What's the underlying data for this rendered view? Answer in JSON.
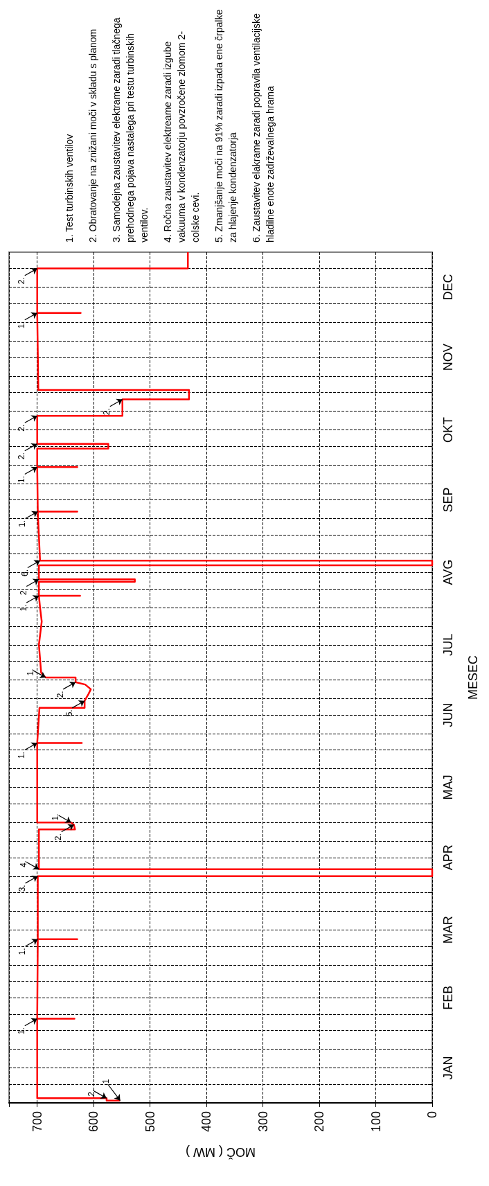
{
  "chart_data": {
    "type": "line",
    "orientation": "horizontal",
    "xlabel": "MOČ ( MW )",
    "ylabel": "MESEC",
    "x": [
      "--01-02",
      "--01-02",
      "--01-03",
      "--01-03",
      "--02-06",
      "--02-06",
      "--02-06",
      "--03-12",
      "--03-12",
      "--03-12",
      "--04-08",
      "--04-08",
      "--04-11",
      "--04-11",
      "--04-28",
      "--04-28",
      "--04-30",
      "--05-01",
      "--05-01",
      "--06-04",
      "--06-04",
      "--06-04",
      "--06-19",
      "--06-19",
      "--06-22",
      "--06-25",
      "--06-27",
      "--06-29",
      "--06-30",
      "--07-02",
      "--07-02",
      "--07-04",
      "--07-16",
      "--07-26",
      "--08-01",
      "--08-06",
      "--08-06",
      "--08-06",
      "--08-12",
      "--08-12",
      "--08-13",
      "--08-13",
      "--08-19",
      "--08-19",
      "--08-21",
      "--08-21",
      "--09-11",
      "--09-11",
      "--09-11",
      "--09-30",
      "--09-30",
      "--09-30",
      "--10-08",
      "--10-08",
      "--10-10",
      "--10-10",
      "--10-22",
      "--10-22",
      "--10-29",
      "--10-29",
      "--11-02",
      "--11-02",
      "--12-05",
      "--12-05",
      "--12-05",
      "--12-24",
      "--12-24",
      "--12-31"
    ],
    "series": [
      {
        "color": "#ff0000",
        "values": [
          553,
          577,
          577,
          700,
          700,
          634,
          700,
          699,
          629,
          699,
          699,
          0,
          0,
          697,
          697,
          633,
          635,
          640,
          700,
          700,
          621,
          700,
          696,
          616,
          616,
          609,
          605,
          615,
          632,
          632,
          685,
          693,
          697,
          692,
          695,
          697,
          624,
          697,
          697,
          527,
          527,
          697,
          697,
          0,
          0,
          695,
          699,
          629,
          699,
          700,
          629,
          700,
          700,
          574,
          574,
          700,
          700,
          549,
          549,
          431,
          431,
          698,
          700,
          623,
          700,
          700,
          433,
          433
        ]
      }
    ],
    "xlim": [
      750,
      0
    ],
    "xticks": [
      700,
      600,
      500,
      400,
      300,
      200,
      100,
      0
    ],
    "ylim": [
      "--01-01",
      "--12-31"
    ],
    "yticks": [
      {
        "value": "--01-01",
        "label": null
      },
      {
        "value": "--01-09",
        "label": null
      },
      {
        "value": "--01-16",
        "label": "JAN"
      },
      {
        "value": "--01-24",
        "label": null
      },
      {
        "value": "--02-01",
        "label": null
      },
      {
        "value": "--02-08",
        "label": null
      },
      {
        "value": "--02-15",
        "label": "FEB"
      },
      {
        "value": "--02-22",
        "label": null
      },
      {
        "value": "--03-01",
        "label": null
      },
      {
        "value": "--03-09",
        "label": null
      },
      {
        "value": "--03-16",
        "label": "MAR"
      },
      {
        "value": "--03-24",
        "label": null
      },
      {
        "value": "--04-01",
        "label": null
      },
      {
        "value": "--04-08",
        "label": null
      },
      {
        "value": "--04-16",
        "label": "APR"
      },
      {
        "value": "--04-23",
        "label": null
      },
      {
        "value": "--05-01",
        "label": null
      },
      {
        "value": "--05-09",
        "label": null
      },
      {
        "value": "--05-16",
        "label": "MAJ"
      },
      {
        "value": "--05-24",
        "label": null
      },
      {
        "value": "--06-01",
        "label": null
      },
      {
        "value": "--06-08",
        "label": null
      },
      {
        "value": "--06-16",
        "label": "JUN"
      },
      {
        "value": "--06-23",
        "label": null
      },
      {
        "value": "--07-01",
        "label": null
      },
      {
        "value": "--07-09",
        "label": null
      },
      {
        "value": "--07-16",
        "label": "JUL"
      },
      {
        "value": "--07-24",
        "label": null
      },
      {
        "value": "--08-01",
        "label": null
      },
      {
        "value": "--08-09",
        "label": null
      },
      {
        "value": "--08-16",
        "label": "AVG"
      },
      {
        "value": "--08-24",
        "label": null
      },
      {
        "value": "--09-01",
        "label": null
      },
      {
        "value": "--09-08",
        "label": null
      },
      {
        "value": "--09-16",
        "label": "SEP"
      },
      {
        "value": "--09-23",
        "label": null
      },
      {
        "value": "--10-01",
        "label": null
      },
      {
        "value": "--10-09",
        "label": null
      },
      {
        "value": "--10-16",
        "label": "OKT"
      },
      {
        "value": "--10-24",
        "label": null
      },
      {
        "value": "--11-01",
        "label": null
      },
      {
        "value": "--11-08",
        "label": null
      },
      {
        "value": "--11-16",
        "label": "NOV"
      },
      {
        "value": "--11-23",
        "label": null
      },
      {
        "value": "--12-01",
        "label": null
      },
      {
        "value": "--12-09",
        "label": null
      },
      {
        "value": "--12-16",
        "label": "DEC"
      },
      {
        "value": "--12-24",
        "label": null
      }
    ],
    "grid": true,
    "marker": "none",
    "line_style": "solid",
    "annotations": [
      {
        "text": "2.",
        "x": 577,
        "y": "--01-03"
      },
      {
        "text": "1",
        "x": 553,
        "y": "--01-02"
      },
      {
        "text": "1.",
        "x": 700,
        "y": "--02-06"
      },
      {
        "text": "1.",
        "x": 699,
        "y": "--03-12"
      },
      {
        "text": "3.",
        "x": 699,
        "y": "--04-08"
      },
      {
        "text": "4.",
        "x": 697,
        "y": "--04-11"
      },
      {
        "text": "2.",
        "x": 635,
        "y": "--04-30"
      },
      {
        "text": "1.",
        "x": 640,
        "y": "--05-01"
      },
      {
        "text": "1.",
        "x": 700,
        "y": "--06-04"
      },
      {
        "text": "5.",
        "x": 616,
        "y": "--06-22"
      },
      {
        "text": "2.",
        "x": 632,
        "y": "--06-30"
      },
      {
        "text": "1.",
        "x": 685,
        "y": "--07-02"
      },
      {
        "text": "1.",
        "x": 697,
        "y": "--08-06"
      },
      {
        "text": "2.",
        "x": 697,
        "y": "--08-13"
      },
      {
        "text": "6.",
        "x": 695,
        "y": "--08-21"
      },
      {
        "text": "1.",
        "x": 699,
        "y": "--09-11"
      },
      {
        "text": "1.",
        "x": 700,
        "y": "--09-30"
      },
      {
        "text": "2.",
        "x": 700,
        "y": "--10-10"
      },
      {
        "text": "2.",
        "x": 700,
        "y": "--10-22"
      },
      {
        "text": "2.",
        "x": 549,
        "y": "--10-29"
      },
      {
        "text": "1.",
        "x": 700,
        "y": "--12-05"
      },
      {
        "text": "2.",
        "x": 700,
        "y": "--12-24"
      },
      "1. Test turbinskih ventilov",
      "2. Obratovanje na znižani moči v skladu s planom",
      "3. Samodejna zaustavitev elektrame zaradi tlačnega  prehodnega pojava nastalega pri testu turbinskih ventilov.",
      "4. Ročna  zaustavitev elektreame zaradi izgube vakuuma v kondenzatorju povzročene zlomom 2-colske cevi.",
      "5. Zmanjšanje moči na 91% zaradi izpada ene črpalke za hlajenje kondenzatorja",
      "6. Zaustavitev elakrame zaradi popravila ventilacijske hladilne enote zadrževalnega hrama"
    ]
  }
}
